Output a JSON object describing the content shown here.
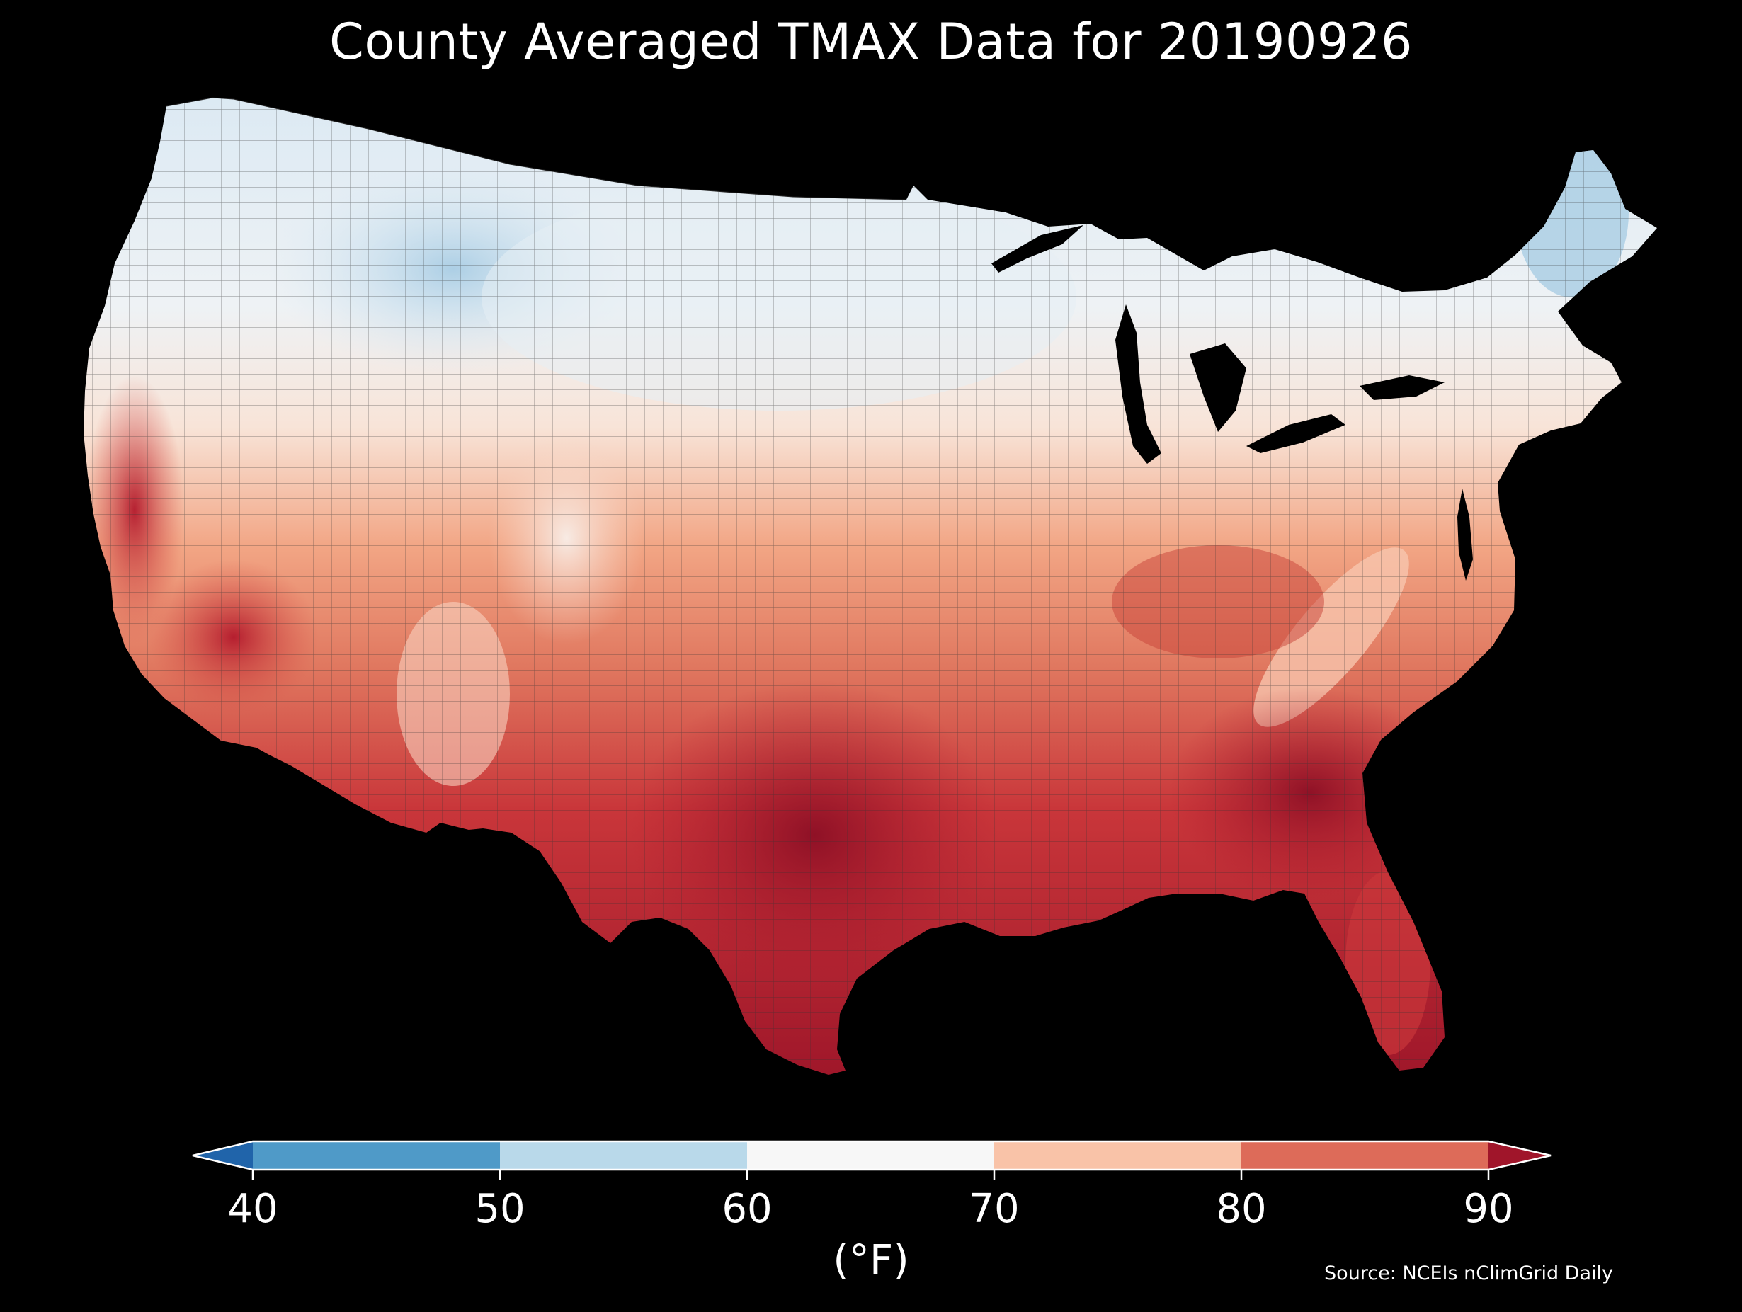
{
  "title": "County Averaged TMAX Data for 20190926",
  "colorbar": {
    "unit": "(°F)",
    "ticks": [
      "40",
      "50",
      "60",
      "70",
      "80",
      "90"
    ],
    "bins": [
      {
        "range": "<40",
        "color": "#2064aa"
      },
      {
        "range": "40-50",
        "color": "#4f9ac8"
      },
      {
        "range": "50-60",
        "color": "#b9d9ea"
      },
      {
        "range": "60-70",
        "color": "#f7f7f7"
      },
      {
        "range": "70-80",
        "color": "#f9c3a8"
      },
      {
        "range": "80-90",
        "color": "#dd6b59"
      },
      {
        "range": ">90",
        "color": "#a0152a"
      }
    ]
  },
  "source": "Source: NCEIs nClimGrid Daily",
  "map": {
    "region": "Contiguous United States counties",
    "colors": {
      "cold": "#a9cde4",
      "cool": "#d8e8f3",
      "neutral": "#f2f2f0",
      "mild": "#f8d2bf",
      "warm": "#e98a6f",
      "hot": "#c9363a",
      "hottest": "#8c0f25",
      "water": "#000000",
      "boundary": "#333333"
    }
  }
}
